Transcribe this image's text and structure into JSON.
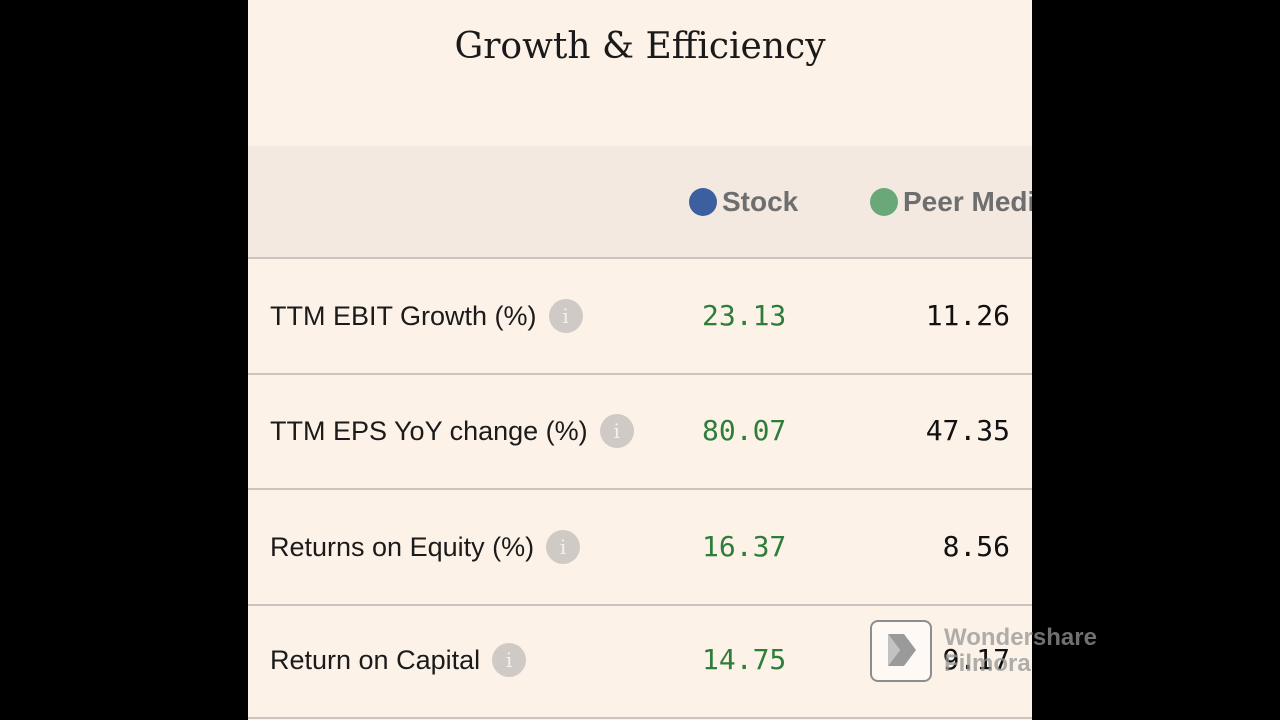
{
  "title": "Growth & Efficiency",
  "legend": {
    "stock_label": "Stock",
    "peer_label": "Peer Medi",
    "stock_color": "#3c5fa0",
    "peer_color": "#6aa877"
  },
  "rows": [
    {
      "metric": "TTM EBIT Growth (%)",
      "stock": "23.13",
      "peer": "11.26"
    },
    {
      "metric": "TTM EPS YoY change (%)",
      "stock": "80.07",
      "peer": "47.35"
    },
    {
      "metric": "Returns on Equity (%)",
      "stock": "16.37",
      "peer": "8.56"
    },
    {
      "metric": "Return on Capital",
      "stock": "14.75",
      "peer": "9.17"
    }
  ],
  "info_icon_glyph": "i",
  "watermark": {
    "line1": "Wondershare",
    "line2": "Filmora"
  },
  "colors": {
    "stock_value": "#2e7d3a",
    "background": "#fcf2e8"
  }
}
